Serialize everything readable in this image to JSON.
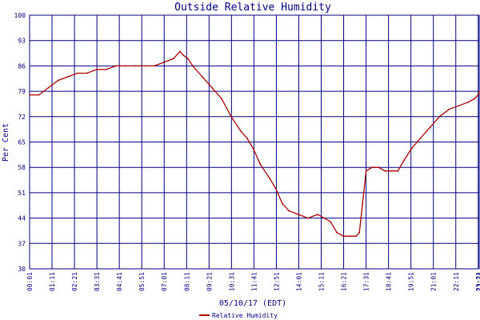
{
  "chart_data": {
    "type": "line",
    "title": "Outside Relative Humidity",
    "xlabel": "05/10/17 (EDT)",
    "ylabel": "Per Cent",
    "ylim": [
      30,
      100
    ],
    "y_ticks": [
      "30",
      "37",
      "44",
      "51",
      "58",
      "65",
      "72",
      "79",
      "86",
      "93",
      "100"
    ],
    "x_ticks": [
      "00:01",
      "01:11",
      "02:21",
      "03:31",
      "04:41",
      "05:51",
      "07:01",
      "08:11",
      "09:21",
      "10:31",
      "11:41",
      "12:51",
      "14:01",
      "15:11",
      "16:21",
      "17:31",
      "18:41",
      "19:51",
      "21:01",
      "22:11",
      "23:21",
      "23:24"
    ],
    "grid": true,
    "legend_position": "bottom-center",
    "series": [
      {
        "name": "Relative Humidity",
        "color": "#aa0000",
        "x": [
          "00:01",
          "00:30",
          "01:00",
          "01:30",
          "02:00",
          "02:30",
          "03:00",
          "03:30",
          "04:00",
          "04:30",
          "05:00",
          "05:30",
          "06:00",
          "06:30",
          "07:00",
          "07:30",
          "07:50",
          "08:00",
          "08:15",
          "08:30",
          "09:00",
          "09:30",
          "10:00",
          "10:30",
          "11:00",
          "11:20",
          "11:40",
          "12:00",
          "12:30",
          "12:50",
          "13:10",
          "13:30",
          "14:00",
          "14:30",
          "15:00",
          "15:20",
          "15:40",
          "16:00",
          "16:20",
          "16:40",
          "17:00",
          "17:10",
          "17:20",
          "17:31",
          "17:50",
          "18:10",
          "18:30",
          "18:50",
          "19:10",
          "19:30",
          "19:51",
          "20:20",
          "20:50",
          "21:20",
          "21:50",
          "22:20",
          "22:50",
          "23:10",
          "23:21",
          "23:24"
        ],
        "values": [
          78,
          78,
          80,
          82,
          83,
          84,
          84,
          85,
          85,
          86,
          86,
          86,
          86,
          86,
          87,
          88,
          90,
          89,
          88,
          86,
          83,
          80,
          77,
          72,
          68,
          66,
          63,
          59,
          55,
          52,
          48,
          46,
          45,
          44,
          45,
          44,
          43,
          40,
          39,
          39,
          39,
          40,
          48,
          57,
          58,
          58,
          57,
          57,
          57,
          60,
          63,
          66,
          69,
          72,
          74,
          75,
          76,
          77,
          78,
          79
        ]
      }
    ]
  }
}
